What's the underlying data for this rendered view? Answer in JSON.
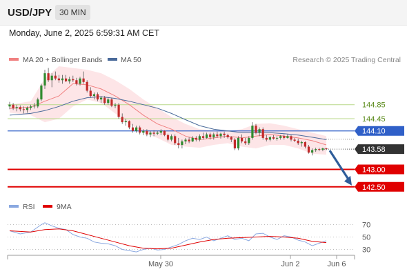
{
  "header": {
    "symbol": "USD/JPY",
    "timeframe": "30 MIN"
  },
  "timestamp": "Monday, June 2, 2025 6:59:31 AM CET",
  "credit": "Research © 2025 Trading Central",
  "colors": {
    "bollinger_fill": "#fde2e4",
    "ma20": "#f08080",
    "ma50": "#4a6a9a",
    "candle_up": "#2f8b2f",
    "candle_down": "#c22a2a",
    "resistance": "#b8d98a",
    "pivot": "#3060c8",
    "support": "#e00000",
    "last_price_bg": "#333333",
    "arrow": "#2f5d9a",
    "rsi": "#8aa8e0",
    "rsi_ma": "#e00000"
  },
  "chart_data": [
    {
      "type": "candlestick",
      "legend": [
        "MA 20 + Bollinger Bands",
        "MA 50"
      ],
      "x_ticks": [
        "May 30",
        "Jun 2",
        "Jun 6"
      ],
      "ylim": [
        142.2,
        145.95
      ],
      "levels": [
        {
          "value": 144.85,
          "label": "144.85",
          "kind": "resistance"
        },
        {
          "value": 144.45,
          "label": "144.45",
          "kind": "resistance"
        },
        {
          "value": 144.1,
          "label": "144.10",
          "kind": "pivot"
        },
        {
          "value": 143.0,
          "label": "143.00",
          "kind": "support"
        },
        {
          "value": 142.5,
          "label": "142.50",
          "kind": "support"
        }
      ],
      "last_price": {
        "value": 143.58,
        "label": "143.58"
      },
      "arrow": {
        "from": 143.58,
        "to": 142.5
      },
      "ohlc": [
        [
          144.8,
          144.93,
          144.72,
          144.85
        ],
        [
          144.85,
          144.9,
          144.7,
          144.75
        ],
        [
          144.75,
          144.85,
          144.66,
          144.78
        ],
        [
          144.78,
          144.83,
          144.66,
          144.72
        ],
        [
          144.72,
          144.8,
          144.6,
          144.7
        ],
        [
          144.7,
          144.8,
          144.62,
          144.76
        ],
        [
          144.76,
          144.85,
          144.7,
          144.8
        ],
        [
          144.8,
          144.9,
          144.74,
          144.82
        ],
        [
          144.8,
          145.05,
          144.75,
          145.0
        ],
        [
          145.0,
          145.45,
          144.95,
          145.4
        ],
        [
          145.4,
          145.85,
          145.3,
          145.75
        ],
        [
          145.75,
          145.9,
          145.5,
          145.55
        ],
        [
          145.55,
          145.75,
          145.35,
          145.68
        ],
        [
          145.68,
          145.8,
          145.55,
          145.6
        ],
        [
          145.6,
          145.7,
          145.48,
          145.55
        ],
        [
          145.55,
          145.7,
          145.45,
          145.6
        ],
        [
          145.6,
          145.7,
          145.5,
          145.52
        ],
        [
          145.52,
          145.65,
          145.45,
          145.58
        ],
        [
          145.58,
          145.68,
          145.5,
          145.55
        ],
        [
          145.55,
          145.62,
          145.4,
          145.45
        ],
        [
          145.45,
          145.65,
          145.4,
          145.6
        ],
        [
          145.6,
          145.8,
          145.45,
          145.5
        ],
        [
          145.5,
          145.55,
          145.2,
          145.25
        ],
        [
          145.25,
          145.35,
          145.05,
          145.1
        ],
        [
          145.1,
          145.2,
          145.0,
          145.15
        ],
        [
          145.15,
          145.2,
          144.95,
          145.0
        ],
        [
          145.0,
          145.1,
          144.9,
          145.05
        ],
        [
          145.05,
          145.1,
          144.85,
          144.9
        ],
        [
          144.9,
          145.05,
          144.85,
          145.0
        ],
        [
          145.0,
          145.05,
          144.78,
          144.82
        ],
        [
          144.82,
          144.9,
          144.75,
          144.85
        ],
        [
          144.85,
          144.9,
          144.45,
          144.5
        ],
        [
          144.5,
          144.6,
          144.3,
          144.35
        ],
        [
          144.35,
          144.45,
          144.25,
          144.38
        ],
        [
          144.38,
          144.4,
          144.15,
          144.2
        ],
        [
          144.2,
          144.3,
          144.05,
          144.1
        ],
        [
          144.1,
          144.25,
          144.05,
          144.2
        ],
        [
          144.2,
          144.25,
          144.0,
          144.05
        ],
        [
          144.05,
          144.15,
          143.98,
          144.1
        ],
        [
          144.1,
          144.15,
          143.95,
          144.0
        ],
        [
          144.0,
          144.1,
          143.92,
          144.05
        ],
        [
          144.05,
          144.12,
          143.95,
          144.02
        ],
        [
          144.02,
          144.1,
          143.98,
          144.05
        ],
        [
          144.05,
          144.15,
          143.98,
          144.1
        ],
        [
          144.1,
          144.12,
          143.95,
          143.98
        ],
        [
          143.98,
          144.02,
          143.8,
          143.85
        ],
        [
          143.85,
          144.0,
          143.8,
          143.95
        ],
        [
          143.95,
          144.0,
          143.7,
          143.75
        ],
        [
          143.75,
          143.9,
          143.6,
          143.7
        ],
        [
          143.7,
          143.85,
          143.6,
          143.8
        ],
        [
          143.8,
          143.9,
          143.72,
          143.85
        ],
        [
          143.85,
          143.92,
          143.75,
          143.8
        ],
        [
          143.8,
          143.95,
          143.78,
          143.9
        ],
        [
          143.9,
          143.95,
          143.8,
          143.85
        ],
        [
          143.85,
          144.0,
          143.8,
          143.95
        ],
        [
          143.95,
          144.05,
          143.85,
          143.9
        ],
        [
          143.9,
          144.05,
          143.88,
          144.0
        ],
        [
          144.0,
          144.05,
          143.85,
          143.92
        ],
        [
          143.92,
          144.05,
          143.85,
          144.0
        ],
        [
          144.0,
          144.08,
          143.9,
          143.95
        ],
        [
          143.95,
          144.05,
          143.88,
          144.02
        ],
        [
          144.02,
          144.08,
          143.9,
          143.98
        ],
        [
          143.98,
          144.02,
          143.88,
          143.92
        ],
        [
          143.92,
          143.95,
          143.78,
          143.85
        ],
        [
          143.85,
          143.9,
          143.55,
          143.6
        ],
        [
          143.6,
          143.95,
          143.55,
          143.9
        ],
        [
          143.9,
          144.0,
          143.75,
          143.8
        ],
        [
          143.8,
          143.9,
          143.7,
          143.75
        ],
        [
          143.75,
          143.95,
          143.7,
          143.9
        ],
        [
          143.9,
          144.35,
          143.85,
          144.25
        ],
        [
          144.25,
          144.3,
          144.0,
          144.05
        ],
        [
          144.05,
          144.2,
          143.95,
          144.15
        ],
        [
          144.15,
          144.2,
          143.85,
          143.9
        ],
        [
          143.9,
          143.98,
          143.8,
          143.85
        ],
        [
          143.85,
          143.95,
          143.8,
          143.92
        ],
        [
          143.92,
          143.98,
          143.85,
          143.88
        ],
        [
          143.88,
          143.95,
          143.82,
          143.9
        ],
        [
          143.9,
          143.98,
          143.85,
          143.95
        ],
        [
          143.95,
          144.0,
          143.85,
          143.9
        ],
        [
          143.9,
          144.0,
          143.88,
          143.95
        ],
        [
          143.95,
          143.98,
          143.8,
          143.85
        ],
        [
          143.85,
          143.9,
          143.78,
          143.82
        ],
        [
          143.82,
          143.88,
          143.7,
          143.75
        ],
        [
          143.75,
          143.82,
          143.65,
          143.78
        ],
        [
          143.78,
          143.8,
          143.6,
          143.65
        ],
        [
          143.65,
          143.7,
          143.45,
          143.48
        ],
        [
          143.48,
          143.6,
          143.4,
          143.55
        ],
        [
          143.55,
          143.62,
          143.5,
          143.58
        ],
        [
          143.58,
          143.62,
          143.52,
          143.56
        ],
        [
          143.56,
          143.62,
          143.52,
          143.6
        ],
        [
          143.6,
          143.62,
          143.55,
          143.58
        ]
      ],
      "ma20": [
        [
          0,
          144.74
        ],
        [
          6,
          144.78
        ],
        [
          10,
          144.95
        ],
        [
          14,
          145.1
        ],
        [
          18,
          145.45
        ],
        [
          22,
          145.42
        ],
        [
          26,
          145.3
        ],
        [
          30,
          145.1
        ],
        [
          34,
          144.85
        ],
        [
          38,
          144.55
        ],
        [
          42,
          144.3
        ],
        [
          46,
          144.15
        ],
        [
          50,
          143.95
        ],
        [
          54,
          143.85
        ],
        [
          58,
          143.9
        ],
        [
          62,
          143.95
        ],
        [
          66,
          143.9
        ],
        [
          70,
          143.95
        ],
        [
          74,
          144.0
        ],
        [
          78,
          143.95
        ],
        [
          82,
          143.9
        ],
        [
          86,
          143.82
        ],
        [
          90,
          143.7
        ]
      ],
      "bb_upper": [
        [
          0,
          144.85
        ],
        [
          6,
          144.95
        ],
        [
          10,
          145.6
        ],
        [
          14,
          145.95
        ],
        [
          18,
          145.9
        ],
        [
          22,
          145.85
        ],
        [
          26,
          145.75
        ],
        [
          30,
          145.55
        ],
        [
          34,
          145.3
        ],
        [
          38,
          145.0
        ],
        [
          42,
          144.75
        ],
        [
          46,
          144.5
        ],
        [
          50,
          144.3
        ],
        [
          54,
          144.15
        ],
        [
          58,
          144.12
        ],
        [
          62,
          144.1
        ],
        [
          66,
          144.15
        ],
        [
          70,
          144.3
        ],
        [
          74,
          144.32
        ],
        [
          78,
          144.25
        ],
        [
          82,
          144.15
        ],
        [
          86,
          144.05
        ],
        [
          90,
          143.95
        ]
      ],
      "bb_lower": [
        [
          0,
          144.62
        ],
        [
          6,
          144.55
        ],
        [
          10,
          144.35
        ],
        [
          14,
          144.45
        ],
        [
          18,
          144.8
        ],
        [
          22,
          145.0
        ],
        [
          26,
          144.9
        ],
        [
          30,
          144.6
        ],
        [
          34,
          144.3
        ],
        [
          38,
          144.05
        ],
        [
          42,
          143.9
        ],
        [
          46,
          143.7
        ],
        [
          50,
          143.65
        ],
        [
          54,
          143.62
        ],
        [
          58,
          143.7
        ],
        [
          62,
          143.75
        ],
        [
          66,
          143.65
        ],
        [
          70,
          143.6
        ],
        [
          74,
          143.7
        ],
        [
          78,
          143.7
        ],
        [
          82,
          143.6
        ],
        [
          86,
          143.45
        ],
        [
          90,
          143.42
        ]
      ],
      "ma50": [
        [
          0,
          144.55
        ],
        [
          6,
          144.6
        ],
        [
          10,
          144.68
        ],
        [
          14,
          144.8
        ],
        [
          18,
          144.95
        ],
        [
          22,
          145.05
        ],
        [
          26,
          145.08
        ],
        [
          30,
          145.03
        ],
        [
          34,
          144.95
        ],
        [
          38,
          144.85
        ],
        [
          42,
          144.75
        ],
        [
          46,
          144.6
        ],
        [
          50,
          144.42
        ],
        [
          54,
          144.25
        ],
        [
          58,
          144.15
        ],
        [
          62,
          144.1
        ],
        [
          66,
          144.05
        ],
        [
          70,
          144.05
        ],
        [
          74,
          144.05
        ],
        [
          78,
          144.02
        ],
        [
          82,
          143.98
        ],
        [
          86,
          143.92
        ],
        [
          90,
          143.85
        ]
      ]
    },
    {
      "type": "line",
      "legend": [
        "RSI",
        "9MA"
      ],
      "ylim": [
        25,
        85
      ],
      "y_ticks": [
        70,
        50,
        30
      ],
      "rsi": [
        [
          0,
          60
        ],
        [
          3,
          55
        ],
        [
          6,
          58
        ],
        [
          9,
          70
        ],
        [
          10,
          73
        ],
        [
          12,
          68
        ],
        [
          14,
          64
        ],
        [
          16,
          62
        ],
        [
          18,
          54
        ],
        [
          20,
          50
        ],
        [
          22,
          48
        ],
        [
          24,
          42
        ],
        [
          26,
          40
        ],
        [
          28,
          39
        ],
        [
          30,
          36
        ],
        [
          32,
          30
        ],
        [
          34,
          28
        ],
        [
          36,
          26
        ],
        [
          38,
          30
        ],
        [
          40,
          32
        ],
        [
          42,
          29
        ],
        [
          44,
          30
        ],
        [
          46,
          34
        ],
        [
          48,
          38
        ],
        [
          50,
          44
        ],
        [
          52,
          48
        ],
        [
          54,
          46
        ],
        [
          56,
          50
        ],
        [
          58,
          44
        ],
        [
          60,
          48
        ],
        [
          62,
          52
        ],
        [
          64,
          46
        ],
        [
          66,
          48
        ],
        [
          68,
          44
        ],
        [
          70,
          55
        ],
        [
          72,
          56
        ],
        [
          74,
          50
        ],
        [
          76,
          46
        ],
        [
          78,
          52
        ],
        [
          80,
          50
        ],
        [
          82,
          45
        ],
        [
          84,
          42
        ],
        [
          86,
          36
        ],
        [
          88,
          40
        ],
        [
          90,
          44
        ]
      ],
      "ma9": [
        [
          0,
          60
        ],
        [
          6,
          58
        ],
        [
          10,
          62
        ],
        [
          14,
          63
        ],
        [
          18,
          60
        ],
        [
          22,
          54
        ],
        [
          26,
          48
        ],
        [
          30,
          42
        ],
        [
          34,
          36
        ],
        [
          38,
          32
        ],
        [
          42,
          31
        ],
        [
          46,
          32
        ],
        [
          50,
          37
        ],
        [
          54,
          42
        ],
        [
          58,
          46
        ],
        [
          62,
          48
        ],
        [
          66,
          49
        ],
        [
          70,
          50
        ],
        [
          74,
          51
        ],
        [
          78,
          50
        ],
        [
          82,
          48
        ],
        [
          86,
          43
        ],
        [
          90,
          41
        ]
      ]
    }
  ]
}
